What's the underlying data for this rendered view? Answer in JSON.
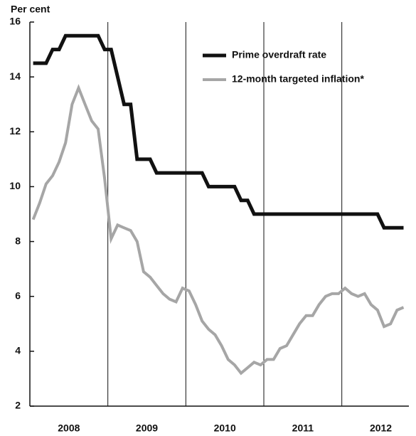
{
  "chart_data": {
    "type": "line",
    "y_axis_label": "Per cent",
    "x": [
      2008.042,
      2008.125,
      2008.208,
      2008.292,
      2008.375,
      2008.458,
      2008.542,
      2008.625,
      2008.708,
      2008.792,
      2008.875,
      2008.958,
      2009.042,
      2009.125,
      2009.208,
      2009.292,
      2009.375,
      2009.458,
      2009.542,
      2009.625,
      2009.708,
      2009.792,
      2009.875,
      2009.958,
      2010.042,
      2010.125,
      2010.208,
      2010.292,
      2010.375,
      2010.458,
      2010.542,
      2010.625,
      2010.708,
      2010.792,
      2010.875,
      2010.958,
      2011.042,
      2011.125,
      2011.208,
      2011.292,
      2011.375,
      2011.458,
      2011.542,
      2011.625,
      2011.708,
      2011.792,
      2011.875,
      2011.958,
      2012.042,
      2012.125,
      2012.208,
      2012.292,
      2012.375,
      2012.458,
      2012.542,
      2012.625,
      2012.708,
      2012.792
    ],
    "series": [
      {
        "name": "Prime overdraft rate",
        "color": "#111111",
        "width": 5,
        "values": [
          14.5,
          14.5,
          14.5,
          15,
          15,
          15.5,
          15.5,
          15.5,
          15.5,
          15.5,
          15.5,
          15,
          15,
          14,
          13,
          13,
          11,
          11,
          11,
          10.5,
          10.5,
          10.5,
          10.5,
          10.5,
          10.5,
          10.5,
          10.5,
          10,
          10,
          10,
          10,
          10,
          9.5,
          9.5,
          9,
          9,
          9,
          9,
          9,
          9,
          9,
          9,
          9,
          9,
          9,
          9,
          9,
          9,
          9,
          9,
          9,
          9,
          9,
          9,
          8.5,
          8.5,
          8.5,
          8.5
        ]
      },
      {
        "name": "12-month targeted inflation*",
        "color": "#a6a6a6",
        "width": 4,
        "values": [
          8.8,
          9.4,
          10.1,
          10.4,
          10.9,
          11.6,
          13.0,
          13.6,
          13.0,
          12.4,
          12.1,
          10.3,
          8.1,
          8.6,
          8.5,
          8.4,
          8.0,
          6.9,
          6.7,
          6.4,
          6.1,
          5.9,
          5.8,
          6.3,
          6.2,
          5.7,
          5.1,
          4.8,
          4.6,
          4.2,
          3.7,
          3.5,
          3.2,
          3.4,
          3.6,
          3.5,
          3.7,
          3.7,
          4.1,
          4.2,
          4.6,
          5.0,
          5.3,
          5.3,
          5.7,
          6.0,
          6.1,
          6.1,
          6.3,
          6.1,
          6.0,
          6.1,
          5.7,
          5.5,
          4.9,
          5.0,
          5.5,
          5.6
        ]
      }
    ],
    "xlim": [
      2008,
      2012.86
    ],
    "xticks": [
      {
        "value": 2008.5,
        "label": "2008"
      },
      {
        "value": 2009.5,
        "label": "2009"
      },
      {
        "value": 2010.5,
        "label": "2010"
      },
      {
        "value": 2011.5,
        "label": "2011"
      },
      {
        "value": 2012.5,
        "label": "2012"
      }
    ],
    "xgrid": [
      2009,
      2010,
      2011,
      2012
    ],
    "ylim": [
      2,
      16
    ],
    "yticks": [
      2,
      4,
      6,
      8,
      10,
      12,
      14,
      16
    ],
    "legend": "upper right"
  }
}
